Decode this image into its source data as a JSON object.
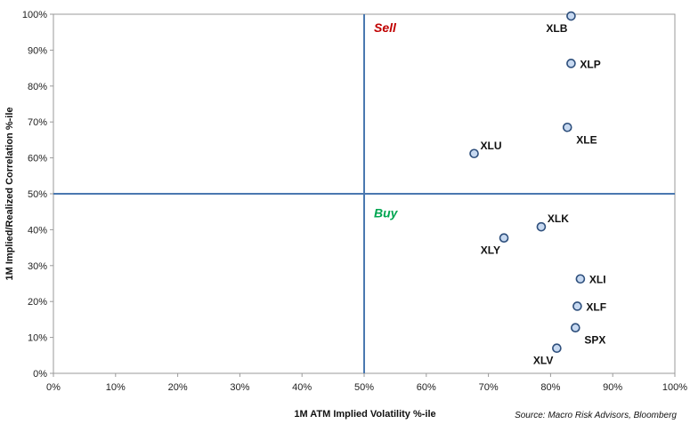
{
  "chart_data": {
    "type": "scatter",
    "title": "",
    "xlabel": "1M ATM Implied Volatility %-ile",
    "ylabel": "1M Implied/Realized Correlation %-ile",
    "xlim": [
      0,
      1
    ],
    "ylim": [
      0,
      1
    ],
    "x_ticks": [
      "0%",
      "10%",
      "20%",
      "30%",
      "40%",
      "50%",
      "60%",
      "70%",
      "80%",
      "90%",
      "100%"
    ],
    "y_ticks": [
      "0%",
      "10%",
      "20%",
      "30%",
      "40%",
      "50%",
      "60%",
      "70%",
      "80%",
      "90%",
      "100%"
    ],
    "grid": false,
    "reference_lines": {
      "x": 0.5,
      "y": 0.5,
      "color": "#4a78b0"
    },
    "quadrant_labels": [
      {
        "text": "Sell",
        "color": "#c00000"
      },
      {
        "text": "Buy",
        "color": "#00a651"
      }
    ],
    "marker_color": "#c7d9f1",
    "marker_edge": "#2e4f7c",
    "points": [
      {
        "label": "XLB",
        "x": 0.833,
        "y": 0.995,
        "label_pos": "below-left"
      },
      {
        "label": "XLP",
        "x": 0.833,
        "y": 0.863,
        "label_pos": "right"
      },
      {
        "label": "XLE",
        "x": 0.827,
        "y": 0.685,
        "label_pos": "below-right"
      },
      {
        "label": "XLU",
        "x": 0.677,
        "y": 0.612,
        "label_pos": "above-right"
      },
      {
        "label": "XLK",
        "x": 0.785,
        "y": 0.408,
        "label_pos": "above-right"
      },
      {
        "label": "XLY",
        "x": 0.725,
        "y": 0.377,
        "label_pos": "below-left"
      },
      {
        "label": "XLI",
        "x": 0.848,
        "y": 0.263,
        "label_pos": "right"
      },
      {
        "label": "XLF",
        "x": 0.843,
        "y": 0.187,
        "label_pos": "right"
      },
      {
        "label": "SPX",
        "x": 0.84,
        "y": 0.127,
        "label_pos": "below-right"
      },
      {
        "label": "XLV",
        "x": 0.81,
        "y": 0.07,
        "label_pos": "below-left"
      }
    ],
    "source": "Source: Macro Risk Advisors, Bloomberg"
  }
}
